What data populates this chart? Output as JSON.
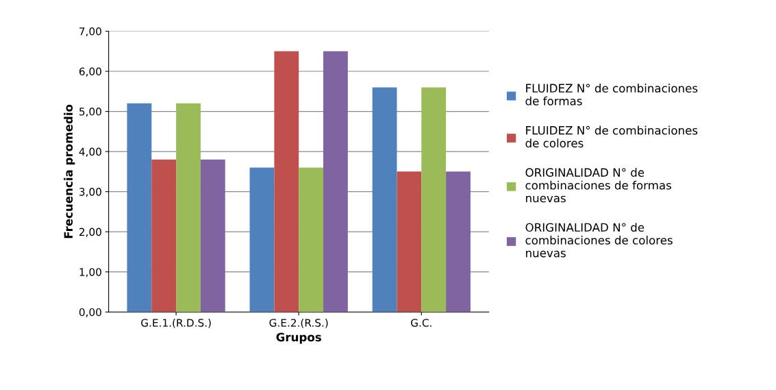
{
  "chart_data": {
    "type": "bar",
    "xlabel": "Grupos",
    "ylabel": "Frecuencia promedio",
    "categories": [
      "G.E.1.(R.D.S.)",
      "G.E.2.(R.S.)",
      "G.C."
    ],
    "series": [
      {
        "name": "FLUIDEZ N° de combinaciones\nde formas",
        "color": "#4f81bd",
        "values": [
          5.2,
          3.6,
          5.6
        ]
      },
      {
        "name": "FLUIDEZ N° de combinaciones\nde colores",
        "color": "#c0504d",
        "values": [
          3.8,
          6.5,
          3.5
        ]
      },
      {
        "name": "ORIGINALIDAD N° de\ncombinaciones de formas\nnuevas",
        "color": "#9bbb59",
        "values": [
          5.2,
          3.6,
          5.6
        ]
      },
      {
        "name": "ORIGINALIDAD N° de\ncombinaciones de colores\nnuevas",
        "color": "#8064a2",
        "values": [
          3.8,
          6.5,
          3.5
        ]
      }
    ],
    "ylim": [
      0,
      7
    ],
    "yticks": [
      {
        "value": 0,
        "label": "0,00"
      },
      {
        "value": 1,
        "label": "1,00"
      },
      {
        "value": 2,
        "label": "2,00"
      },
      {
        "value": 3,
        "label": "3,00"
      },
      {
        "value": 4,
        "label": "4,00"
      },
      {
        "value": 5,
        "label": "5,00"
      },
      {
        "value": 6,
        "label": "6,00"
      },
      {
        "value": 7,
        "label": "7,00"
      }
    ],
    "grid": "y",
    "legend": "right"
  }
}
